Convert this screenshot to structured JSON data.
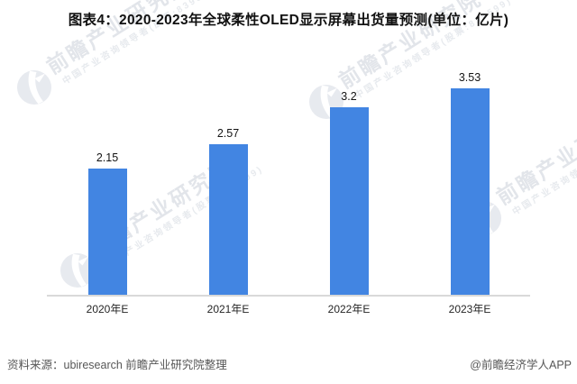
{
  "title": "图表4：2020-2023年全球柔性OLED显示屏幕出货量预测(单位：亿片)",
  "chart_data": {
    "type": "bar",
    "title": "图表4：2020-2023年全球柔性OLED显示屏幕出货量预测(单位：亿片)",
    "unit": "亿片",
    "categories": [
      "2020年E",
      "2021年E",
      "2022年E",
      "2023年E"
    ],
    "values": [
      2.15,
      2.57,
      3.2,
      3.53
    ],
    "value_labels": [
      "2.15",
      "2.57",
      "3.2",
      "3.53"
    ],
    "xlabel": "",
    "ylabel": "",
    "ylim": [
      0,
      3.95
    ],
    "grid": false,
    "legend": false,
    "bar_color": "#4285e2",
    "axis_line_color": "#d9d9d9"
  },
  "footer": {
    "source": "资料来源：ubiresearch 前瞻产业研究院整理",
    "credit": "@前瞻经济学人APP"
  },
  "watermark": {
    "logo_icon": "qianzhan-logo-icon",
    "brand": "前瞻产业研究院",
    "tagline": "中国产业咨询领导者(股票:839599)"
  }
}
